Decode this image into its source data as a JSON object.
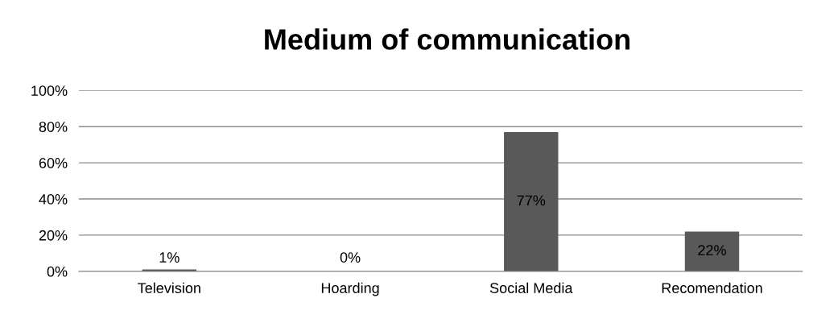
{
  "chart_data": {
    "type": "bar",
    "title": "Medium of communication",
    "categories": [
      "Television",
      "Hoarding",
      "Social Media",
      "Recomendation"
    ],
    "values": [
      1,
      0,
      77,
      22
    ],
    "value_labels": [
      "1%",
      "0%",
      "77%",
      "22%"
    ],
    "color": "#595959",
    "ylim": [
      0,
      100
    ],
    "yticks": [
      {
        "value": 0,
        "label": "0%"
      },
      {
        "value": 20,
        "label": "20%"
      },
      {
        "value": 40,
        "label": "40%"
      },
      {
        "value": 60,
        "label": "60%"
      },
      {
        "value": 80,
        "label": "80%"
      },
      {
        "value": 100,
        "label": "100%"
      }
    ],
    "grid": "y",
    "legend": false
  }
}
